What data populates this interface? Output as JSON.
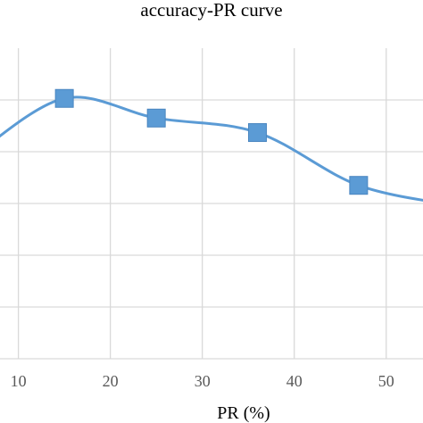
{
  "colors": {
    "series": "#5b9bd5",
    "grid": "#d9d9d9",
    "tick": "#595959"
  },
  "chart_data": {
    "type": "line",
    "title": "accuracy-PR curve",
    "xlabel": "PR (%)",
    "ylabel": "",
    "xlim": [
      8,
      54
    ],
    "ylim": [
      0,
      6
    ],
    "x_ticks": [
      10,
      20,
      30,
      40,
      50
    ],
    "x_tick_labels": [
      "10",
      "20",
      "30",
      "40",
      "50"
    ],
    "y_gridlines": [
      1,
      2,
      3,
      4,
      5
    ],
    "grid": true,
    "smooth": true,
    "series": [
      {
        "x": [
          5,
          15,
          25,
          36,
          47,
          58
        ],
        "y": [
          3.9,
          5.03,
          4.65,
          4.37,
          3.35,
          2.95
        ],
        "marker_indices": [
          1,
          2,
          3,
          4
        ]
      }
    ]
  }
}
